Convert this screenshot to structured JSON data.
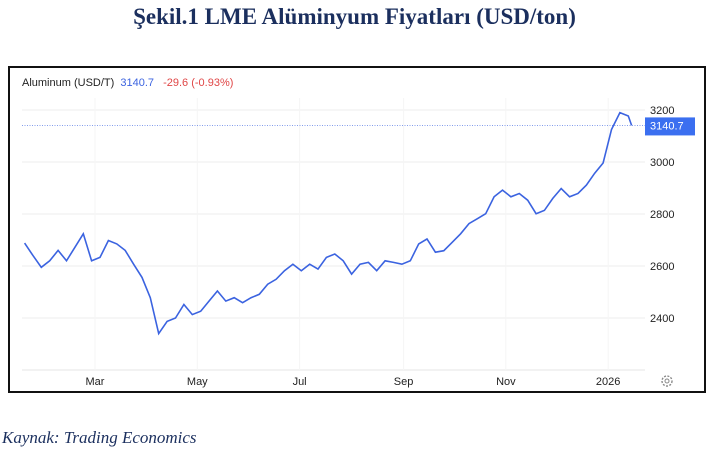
{
  "title": "Şekil.1 LME Alüminyum Fiyatları (USD/ton)",
  "caption": "Kaynak: Trading Economics",
  "header": {
    "name": "Aluminum (USD/T)",
    "price": "3140.7",
    "change": "-29.6 (-0.93%)"
  },
  "colors": {
    "line": "#3b63e0",
    "price": "#3b63e0",
    "change": "#e04646",
    "tag": "#3b6ff0"
  },
  "icons": {
    "settings": "gear-icon"
  },
  "chart_data": {
    "type": "line",
    "title": "Aluminum (USD/T)",
    "xlabel": "",
    "ylabel": "",
    "ylim": [
      2200,
      3300
    ],
    "yticks": [
      2400,
      2600,
      2800,
      3000,
      3200
    ],
    "ytick_labels": [
      "2400",
      "2600",
      "2800",
      "3000",
      "3200"
    ],
    "xticks": [
      {
        "label": "Mar",
        "date": "2025-03-01"
      },
      {
        "label": "May",
        "date": "2025-05-01"
      },
      {
        "label": "Jul",
        "date": "2025-07-01"
      },
      {
        "label": "Sep",
        "date": "2025-09-01"
      },
      {
        "label": "Nov",
        "date": "2025-11-01"
      },
      {
        "label": "2026",
        "date": "2026-01-01"
      }
    ],
    "grid": true,
    "last_value": 3140.7,
    "last_value_label": "3140.7",
    "series": [
      {
        "name": "Aluminum",
        "start_date": "2025-01-18",
        "step_days": 5,
        "values": [
          2688,
          2640,
          2595,
          2620,
          2660,
          2620,
          2672,
          2724,
          2620,
          2633,
          2698,
          2685,
          2660,
          2607,
          2556,
          2478,
          2340,
          2387,
          2400,
          2452,
          2413,
          2426,
          2465,
          2504,
          2465,
          2478,
          2459,
          2478,
          2491,
          2530,
          2549,
          2582,
          2607,
          2582,
          2607,
          2588,
          2633,
          2646,
          2620,
          2569,
          2607,
          2614,
          2582,
          2620,
          2614,
          2607,
          2620,
          2685,
          2704,
          2653,
          2659,
          2691,
          2724,
          2763,
          2782,
          2801,
          2866,
          2892,
          2866,
          2879,
          2853,
          2801,
          2814,
          2860,
          2898,
          2866,
          2879,
          2911,
          2957,
          2996,
          3125,
          3190,
          3177,
          3140.7
        ]
      }
    ]
  }
}
